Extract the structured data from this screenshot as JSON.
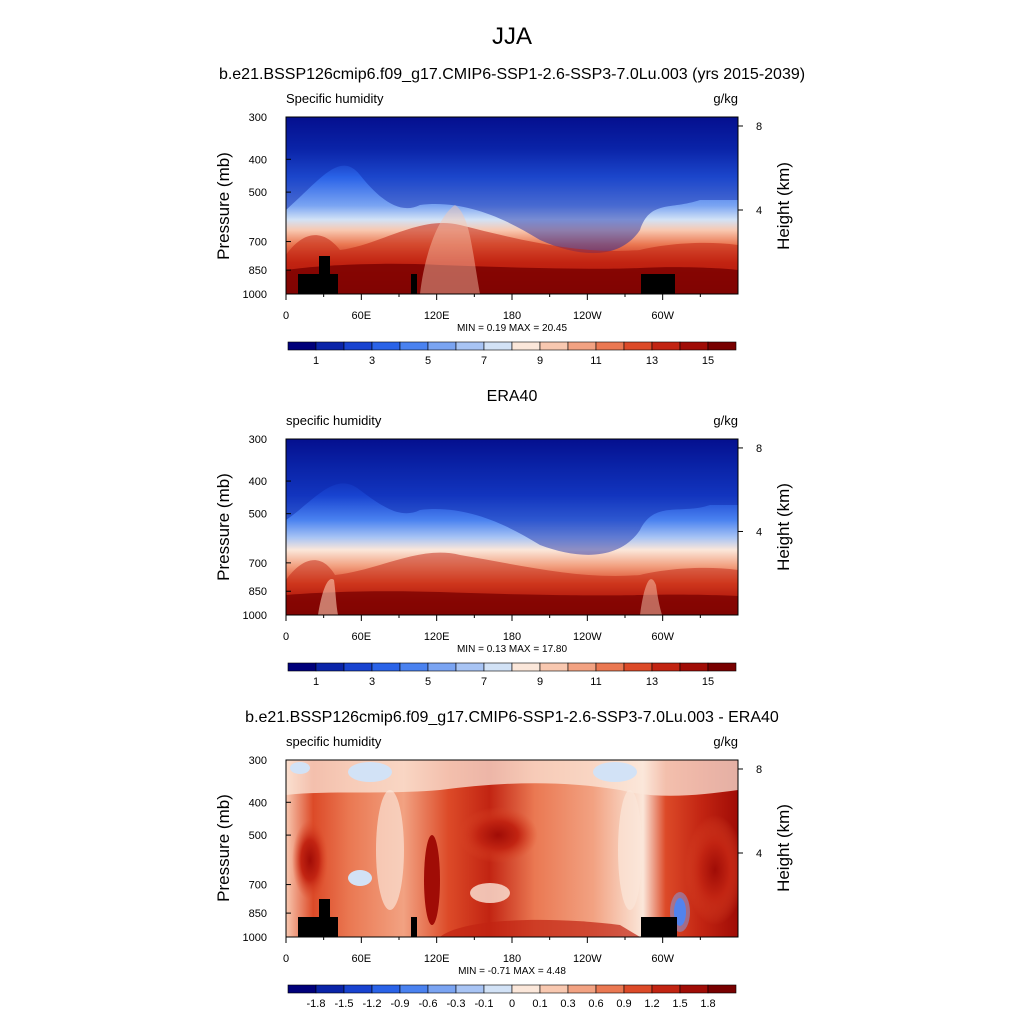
{
  "page": {
    "title": "JJA"
  },
  "panels": [
    {
      "title": "b.e21.BSSP126cmip6.f09_g17.CMIP6-SSP1-2.6-SSP3-7.0Lu.003 (yrs 2015-2039)",
      "left_label": "Specific humidity",
      "right_label": "g/kg",
      "ylabel": "Pressure (mb)",
      "y2label": "Height (km)",
      "stats": "MIN =  0.19  MAX =  20.45",
      "colorbar_labels": [
        "1",
        "3",
        "5",
        "7",
        "9",
        "11",
        "13",
        "15"
      ],
      "colorbar_label_slots": [
        1,
        3,
        5,
        7,
        9,
        11,
        13,
        15
      ],
      "show_topography": true
    },
    {
      "title": "ERA40",
      "left_label": "specific humidity",
      "right_label": "g/kg",
      "ylabel": "Pressure (mb)",
      "y2label": "Height (km)",
      "stats": "MIN =  0.13  MAX =  17.80",
      "colorbar_labels": [
        "1",
        "3",
        "5",
        "7",
        "9",
        "11",
        "13",
        "15"
      ],
      "colorbar_label_slots": [
        1,
        3,
        5,
        7,
        9,
        11,
        13,
        15
      ],
      "show_topography": false
    },
    {
      "title": "b.e21.BSSP126cmip6.f09_g17.CMIP6-SSP1-2.6-SSP3-7.0Lu.003 - ERA40",
      "left_label": "specific humidity",
      "right_label": "g/kg",
      "ylabel": "Pressure (mb)",
      "y2label": "Height (km)",
      "stats": "MIN = -0.71  MAX =  4.48",
      "colorbar_labels": [
        "-1.8",
        "-1.5",
        "-1.2",
        "-0.9",
        "-0.6",
        "-0.3",
        "-0.1",
        "0",
        "0.1",
        "0.3",
        "0.6",
        "0.9",
        "1.2",
        "1.5",
        "1.8"
      ],
      "colorbar_label_slots": [
        1,
        2,
        3,
        4,
        5,
        6,
        7,
        8,
        9,
        10,
        11,
        12,
        13,
        14,
        15
      ],
      "show_topography": true
    }
  ],
  "chart_data": [
    {
      "type": "heatmap",
      "title": "b.e21.BSSP126cmip6.f09_g17.CMIP6-SSP1-2.6-SSP3-7.0Lu.003 (yrs 2015-2039)",
      "xlabel": "",
      "ylabel": "Pressure (mb)",
      "y2label": "Height (km)",
      "x_ticks": [
        "0",
        "60E",
        "120E",
        "180",
        "120W",
        "60W"
      ],
      "y_ticks": [
        300,
        400,
        500,
        700,
        850,
        1000
      ],
      "y2_ticks": [
        4,
        8
      ],
      "ylim": [
        1000,
        300
      ],
      "units": "g/kg",
      "min": 0.19,
      "max": 20.45,
      "colorscale": [
        "#00007a",
        "#0a24a8",
        "#1843d0",
        "#2a63e8",
        "#4a82f0",
        "#7aa4f2",
        "#a8c4f4",
        "#d2e2f6",
        "#fbe7da",
        "#f8c8b0",
        "#f2a282",
        "#ea7852",
        "#dc4a28",
        "#c22412",
        "#a00c06",
        "#780000"
      ]
    },
    {
      "type": "heatmap",
      "title": "ERA40",
      "xlabel": "",
      "ylabel": "Pressure (mb)",
      "y2label": "Height (km)",
      "x_ticks": [
        "0",
        "60E",
        "120E",
        "180",
        "120W",
        "60W"
      ],
      "y_ticks": [
        300,
        400,
        500,
        700,
        850,
        1000
      ],
      "y2_ticks": [
        4,
        8
      ],
      "ylim": [
        1000,
        300
      ],
      "units": "g/kg",
      "min": 0.13,
      "max": 17.8,
      "colorscale": [
        "#00007a",
        "#0a24a8",
        "#1843d0",
        "#2a63e8",
        "#4a82f0",
        "#7aa4f2",
        "#a8c4f4",
        "#d2e2f6",
        "#fbe7da",
        "#f8c8b0",
        "#f2a282",
        "#ea7852",
        "#dc4a28",
        "#c22412",
        "#a00c06",
        "#780000"
      ]
    },
    {
      "type": "heatmap",
      "title": "b.e21.BSSP126cmip6.f09_g17.CMIP6-SSP1-2.6-SSP3-7.0Lu.003 - ERA40",
      "xlabel": "",
      "ylabel": "Pressure (mb)",
      "y2label": "Height (km)",
      "x_ticks": [
        "0",
        "60E",
        "120E",
        "180",
        "120W",
        "60W"
      ],
      "y_ticks": [
        300,
        400,
        500,
        700,
        850,
        1000
      ],
      "y2_ticks": [
        4,
        8
      ],
      "ylim": [
        1000,
        300
      ],
      "units": "g/kg",
      "min": -0.71,
      "max": 4.48,
      "colorscale": [
        "#00007a",
        "#0a24a8",
        "#1843d0",
        "#2a63e8",
        "#4a82f0",
        "#7aa4f2",
        "#a8c4f4",
        "#d2e2f6",
        "#fbe7da",
        "#f8c8b0",
        "#f2a282",
        "#ea7852",
        "#dc4a28",
        "#c22412",
        "#a00c06",
        "#780000"
      ]
    }
  ]
}
